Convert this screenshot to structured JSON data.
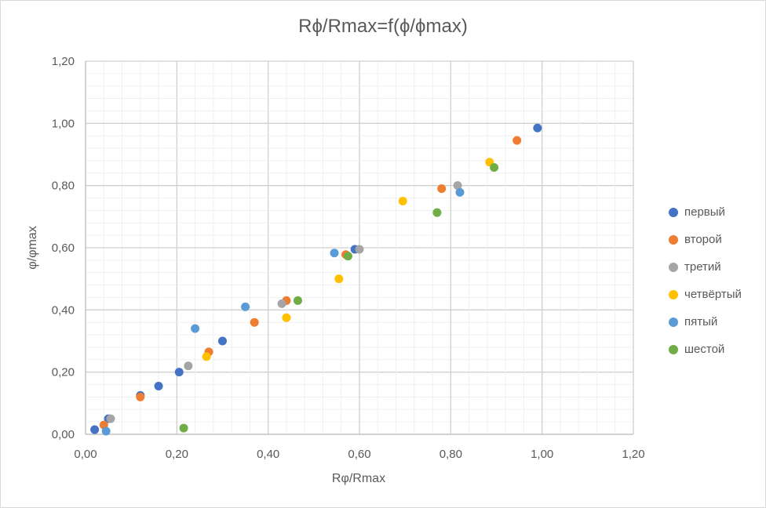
{
  "chart_data": {
    "type": "scatter",
    "title": "Rϕ/Rmax=f(ϕ/ϕmax)",
    "xlabel": "Rφ/Rmax",
    "ylabel": "φ/φmax",
    "xlim": [
      0,
      1.2
    ],
    "ylim": [
      0,
      1.2
    ],
    "x_ticks": [
      "0,00",
      "0,20",
      "0,40",
      "0,60",
      "0,80",
      "1,00",
      "1,20"
    ],
    "y_ticks": [
      "0,00",
      "0,20",
      "0,40",
      "0,60",
      "0,80",
      "1,00",
      "1,20"
    ],
    "grid": true,
    "legend_position": "right",
    "series": [
      {
        "name": "первый",
        "color": "#4472C4",
        "points": [
          [
            0.02,
            0.015
          ],
          [
            0.05,
            0.05
          ],
          [
            0.12,
            0.125
          ],
          [
            0.16,
            0.155
          ],
          [
            0.205,
            0.2
          ],
          [
            0.3,
            0.3
          ],
          [
            0.59,
            0.595
          ],
          [
            0.99,
            0.985
          ]
        ]
      },
      {
        "name": "второй",
        "color": "#ED7D31",
        "points": [
          [
            0.04,
            0.03
          ],
          [
            0.12,
            0.12
          ],
          [
            0.27,
            0.265
          ],
          [
            0.37,
            0.36
          ],
          [
            0.44,
            0.43
          ],
          [
            0.57,
            0.578
          ],
          [
            0.78,
            0.79
          ],
          [
            0.945,
            0.945
          ]
        ]
      },
      {
        "name": "третий",
        "color": "#A5A5A5",
        "points": [
          [
            0.055,
            0.05
          ],
          [
            0.225,
            0.22
          ],
          [
            0.43,
            0.42
          ],
          [
            0.6,
            0.595
          ],
          [
            0.815,
            0.8
          ]
        ]
      },
      {
        "name": "четвёртый",
        "color": "#FFC000",
        "points": [
          [
            0.265,
            0.25
          ],
          [
            0.44,
            0.375
          ],
          [
            0.555,
            0.5
          ],
          [
            0.695,
            0.75
          ],
          [
            0.885,
            0.875
          ]
        ]
      },
      {
        "name": "пятый",
        "color": "#5B9BD5",
        "points": [
          [
            0.045,
            0.01
          ],
          [
            0.24,
            0.34
          ],
          [
            0.35,
            0.41
          ],
          [
            0.545,
            0.583
          ],
          [
            0.82,
            0.778
          ]
        ]
      },
      {
        "name": "шестой",
        "color": "#70AD47",
        "points": [
          [
            0.215,
            0.02
          ],
          [
            0.465,
            0.43
          ],
          [
            0.575,
            0.573
          ],
          [
            0.77,
            0.713
          ],
          [
            0.895,
            0.858
          ]
        ]
      }
    ]
  }
}
